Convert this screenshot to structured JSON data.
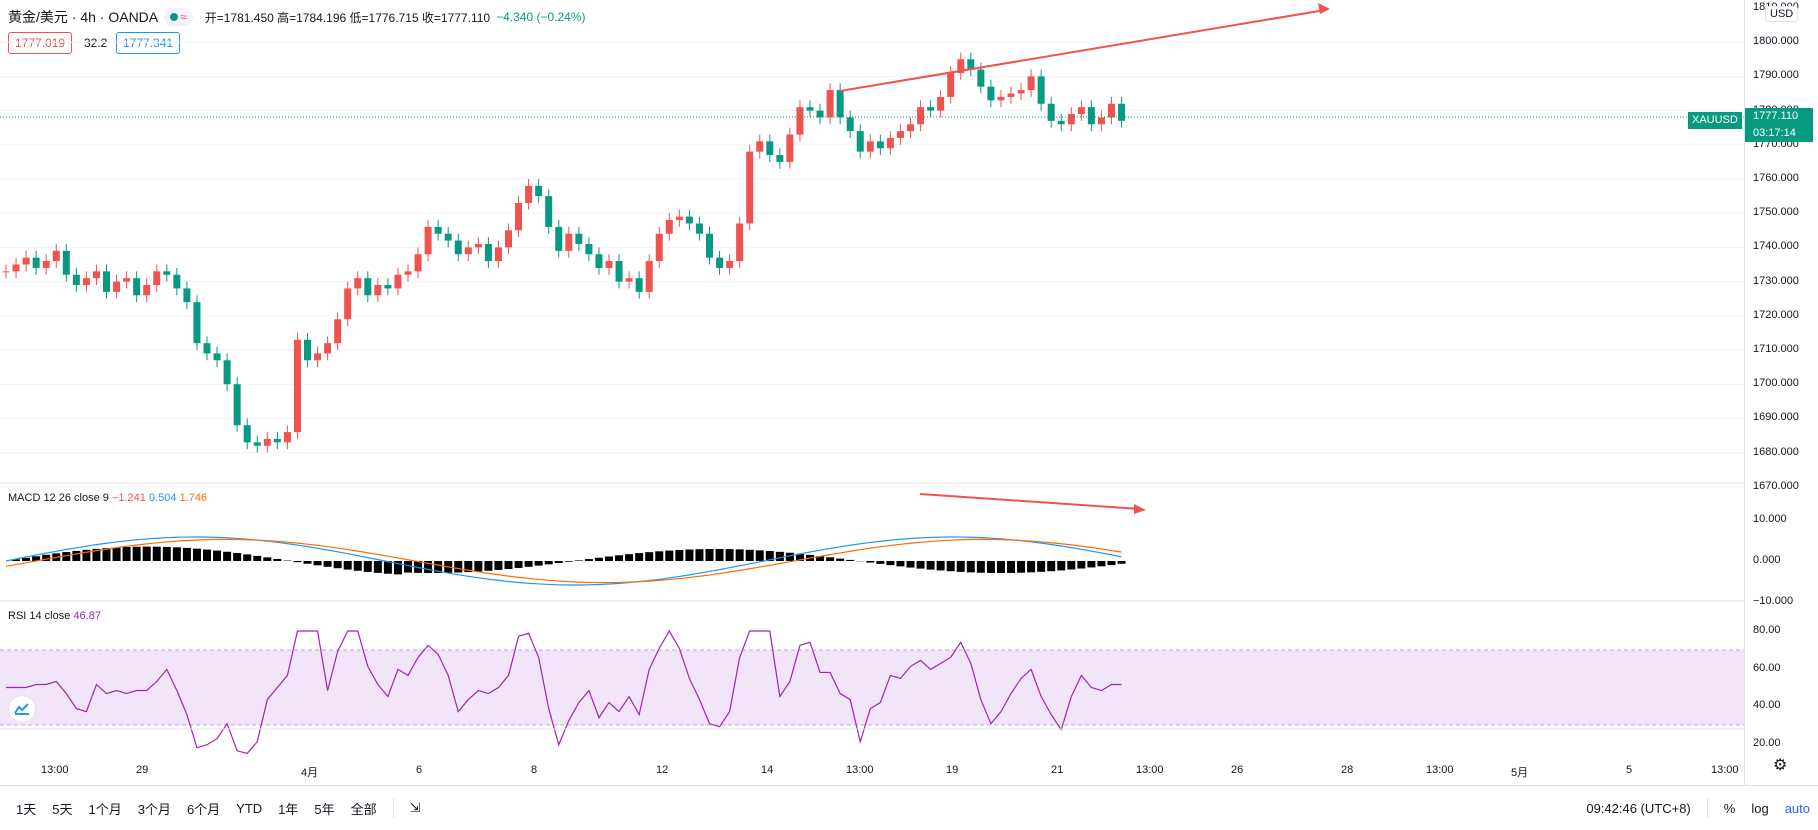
{
  "header": {
    "symbol": "黄金/美元 · 4h · OANDA",
    "ohlc": "开=1781.450 高=1784.196 低=1776.715 收=1777.110",
    "change": "−4.340 (−0.24%)",
    "bid": "1777.019",
    "spread": "32.2",
    "ask": "1777.341"
  },
  "price_axis": {
    "currency": "USD",
    "ticks": [
      "1810.000",
      "1800.000",
      "1790.000",
      "1780.000",
      "1770.000",
      "1760.000",
      "1750.000",
      "1740.000",
      "1730.000",
      "1720.000",
      "1710.000",
      "1700.000",
      "1690.000",
      "1680.000",
      "1670.000"
    ],
    "symbol_tag": "XAUUSD",
    "last_price": "1777.110",
    "countdown": "03:17:14"
  },
  "macd": {
    "label": "MACD 12 26 close 9",
    "hist_value": "−1.241",
    "macd_value": "0.504",
    "signal_value": "1.746",
    "ticks": [
      "10.000",
      "0.000",
      "−10.000"
    ]
  },
  "rsi": {
    "label": "RSI 14 close",
    "value": "46.87",
    "ticks": [
      "80.00",
      "60.00",
      "40.00",
      "20.00"
    ]
  },
  "time_axis": [
    "13:00",
    "29",
    "4月",
    "6",
    "8",
    "12",
    "14",
    "13:00",
    "19",
    "21",
    "13:00",
    "26",
    "28",
    "13:00",
    "5月",
    "5",
    "13:00"
  ],
  "bottom_bar": {
    "ranges": [
      "1天",
      "5天",
      "1个月",
      "3个月",
      "6个月",
      "YTD",
      "1年",
      "5年",
      "全部"
    ],
    "clock": "09:42:46 (UTC+8)",
    "pct": "%",
    "log": "log",
    "auto": "auto"
  },
  "colors": {
    "up": "#ef5350",
    "down": "#089981",
    "macd_line": "#2196f3",
    "signal_line": "#ff6d00",
    "rsi_line": "#9c27b0",
    "rsi_band": "#f3e5f9"
  }
}
